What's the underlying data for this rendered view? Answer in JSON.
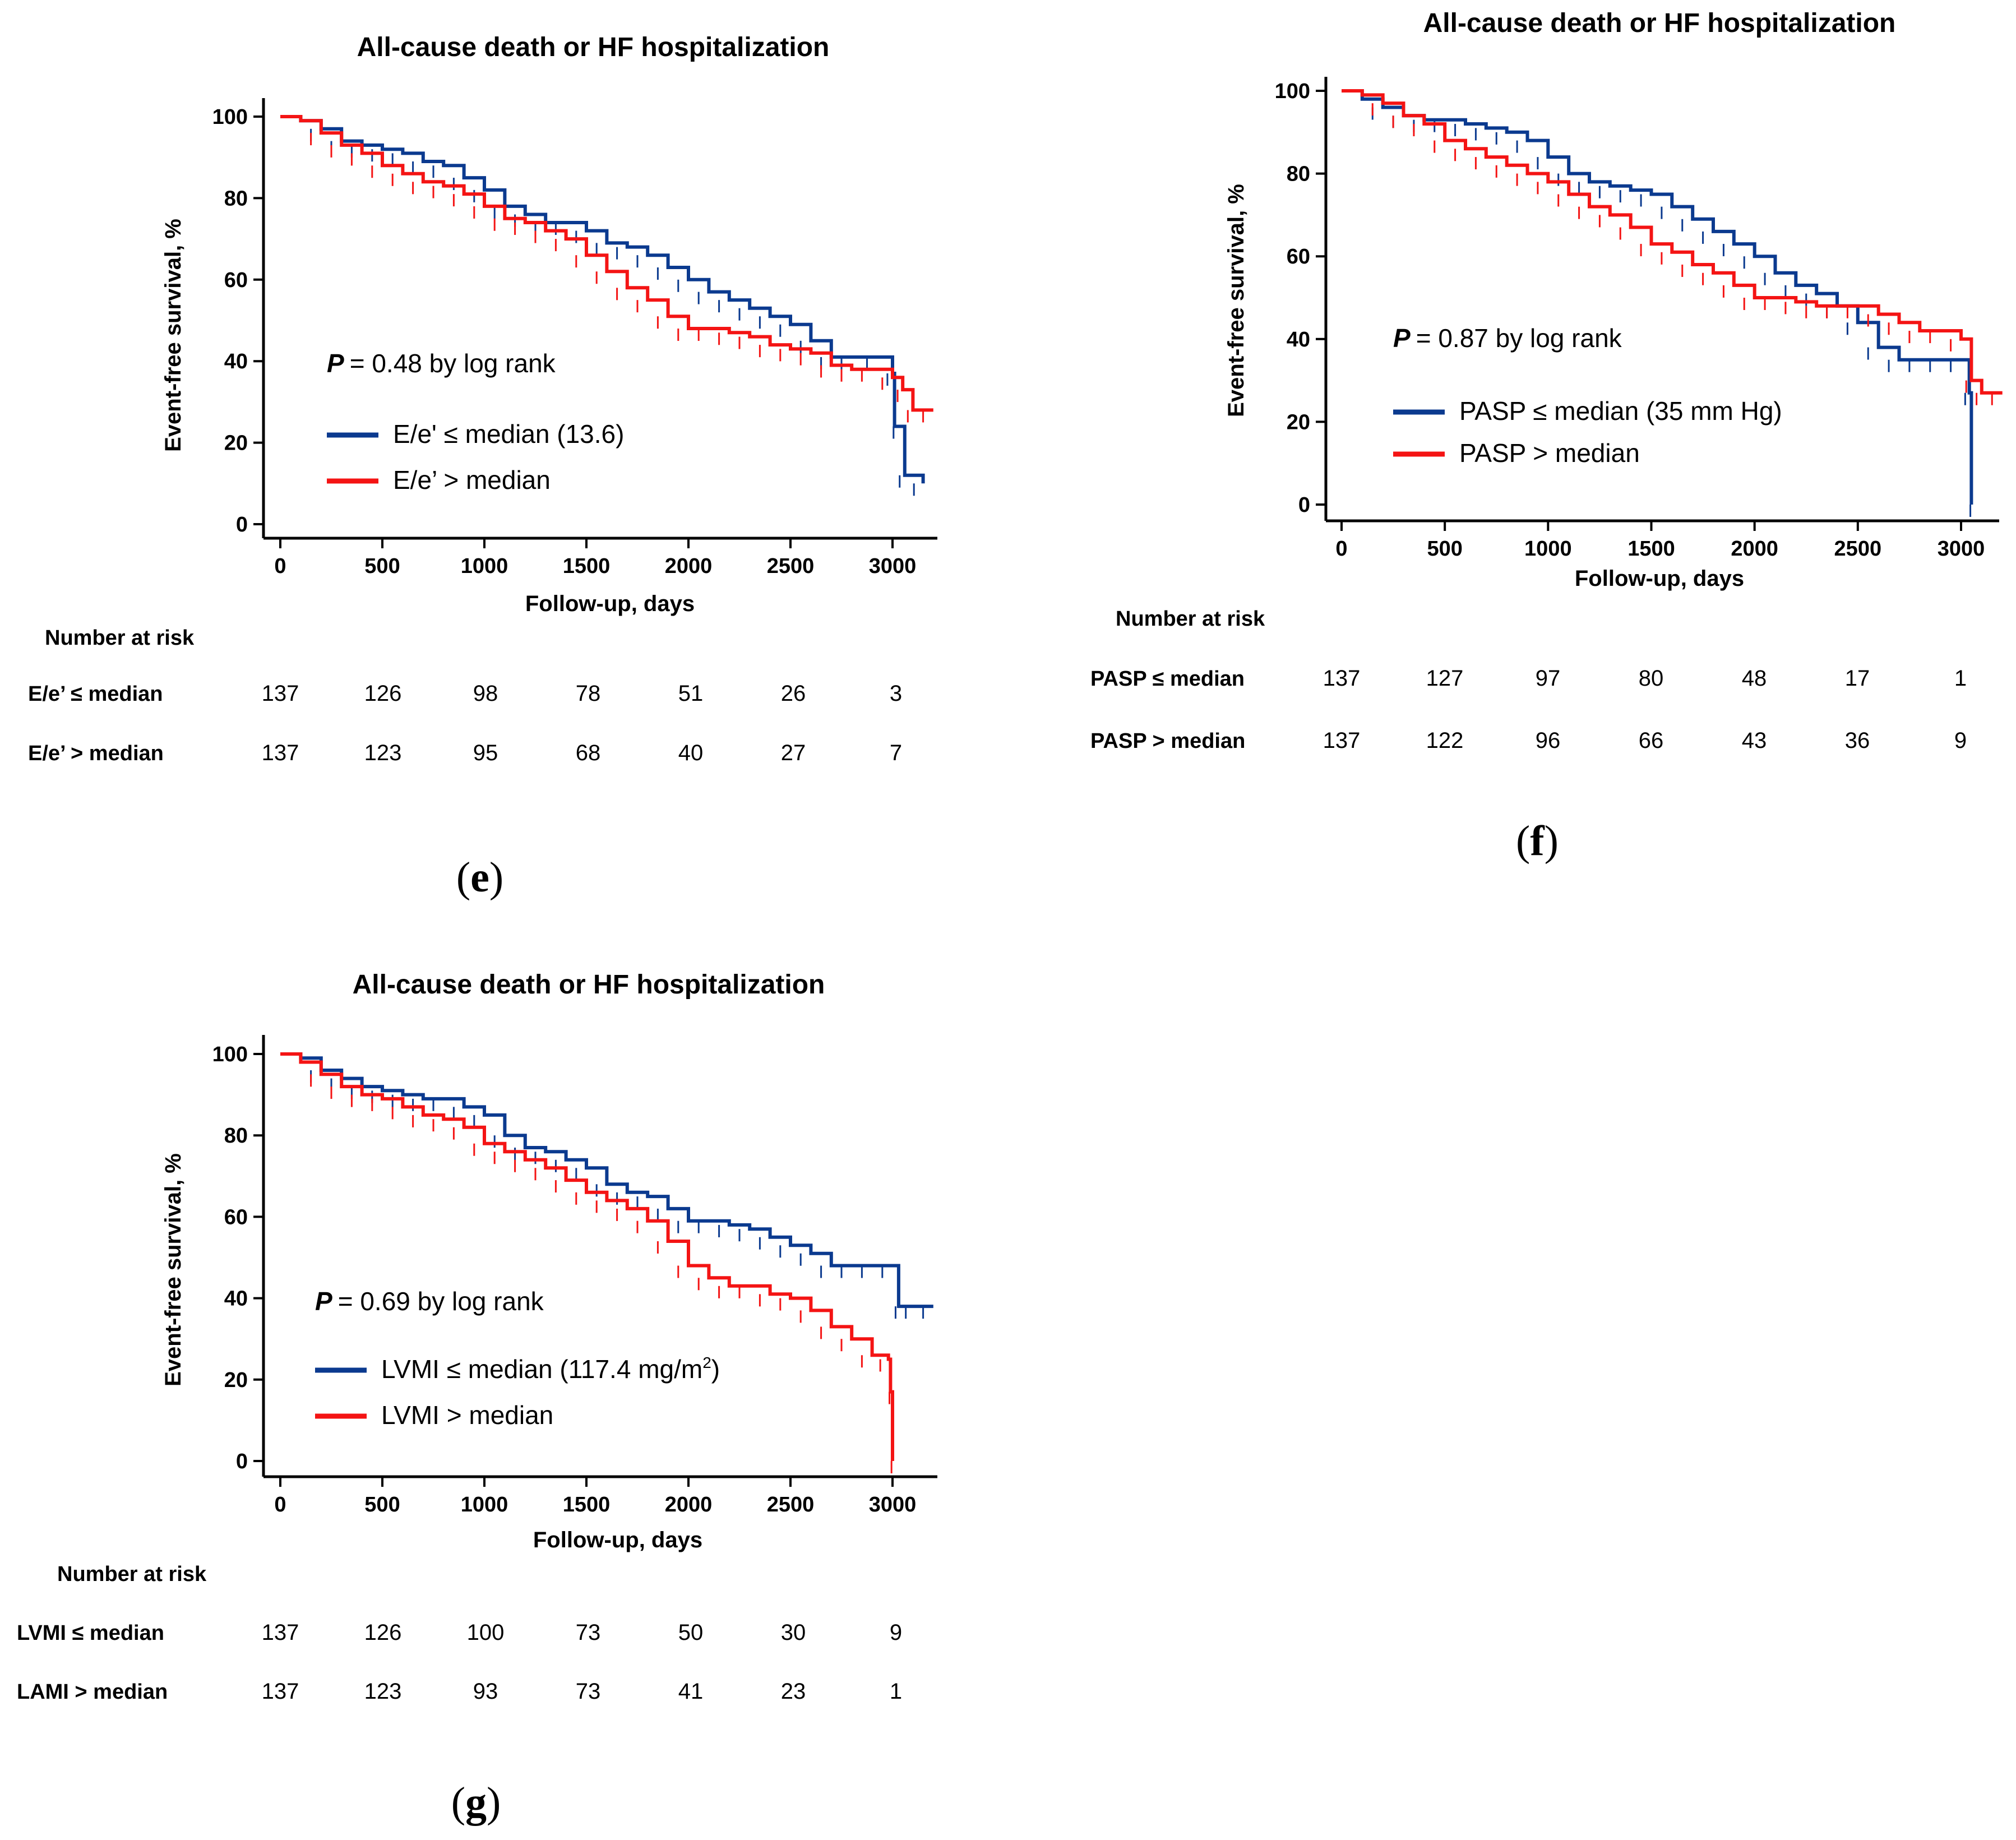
{
  "colors": {
    "group1": "#0b3a8f",
    "group2": "#f41414",
    "axis": "#000000"
  },
  "chart_data": [
    {
      "id": "e",
      "type": "line",
      "panel_label": "e",
      "title": "All-cause death or HF hospitalization",
      "xlabel": "Follow-up, days",
      "ylabel": "Event-free survival, %",
      "xlim": [
        -80,
        3200
      ],
      "ylim": [
        -3,
        104
      ],
      "xticks": [
        0,
        500,
        1000,
        1500,
        2000,
        2500,
        3000
      ],
      "yticks": [
        0,
        20,
        40,
        60,
        80,
        100
      ],
      "grid": false,
      "legend_position": "middle-left",
      "p_label": "P",
      "p_text": "= 0.48 by log rank",
      "series": [
        {
          "name": "E/e' ≤ median (13.6)",
          "color": "#0b3a8f",
          "points": [
            [
              0,
              100
            ],
            [
              100,
              99
            ],
            [
              200,
              97
            ],
            [
              300,
              94
            ],
            [
              400,
              93
            ],
            [
              500,
              92
            ],
            [
              600,
              91
            ],
            [
              700,
              89
            ],
            [
              800,
              88
            ],
            [
              900,
              85
            ],
            [
              1000,
              82
            ],
            [
              1100,
              78
            ],
            [
              1200,
              76
            ],
            [
              1300,
              74
            ],
            [
              1400,
              74
            ],
            [
              1500,
              72
            ],
            [
              1600,
              69
            ],
            [
              1700,
              68
            ],
            [
              1800,
              66
            ],
            [
              1900,
              63
            ],
            [
              2000,
              60
            ],
            [
              2100,
              57
            ],
            [
              2200,
              55
            ],
            [
              2300,
              53
            ],
            [
              2400,
              51
            ],
            [
              2500,
              49
            ],
            [
              2600,
              45
            ],
            [
              2700,
              41
            ],
            [
              2800,
              41
            ],
            [
              2950,
              41
            ],
            [
              3000,
              37
            ],
            [
              3010,
              24
            ],
            [
              3060,
              12
            ],
            [
              3150,
              10
            ]
          ]
        },
        {
          "name": "E/e’ > median",
          "color": "#f41414",
          "points": [
            [
              0,
              100
            ],
            [
              100,
              99
            ],
            [
              200,
              96
            ],
            [
              300,
              93
            ],
            [
              400,
              91
            ],
            [
              500,
              88
            ],
            [
              600,
              86
            ],
            [
              700,
              84
            ],
            [
              800,
              83
            ],
            [
              900,
              81
            ],
            [
              1000,
              78
            ],
            [
              1100,
              75
            ],
            [
              1200,
              74
            ],
            [
              1300,
              72
            ],
            [
              1400,
              70
            ],
            [
              1500,
              66
            ],
            [
              1600,
              62
            ],
            [
              1700,
              58
            ],
            [
              1800,
              55
            ],
            [
              1900,
              51
            ],
            [
              2000,
              48
            ],
            [
              2100,
              48
            ],
            [
              2200,
              47
            ],
            [
              2300,
              46
            ],
            [
              2400,
              44
            ],
            [
              2500,
              43
            ],
            [
              2600,
              42
            ],
            [
              2700,
              39
            ],
            [
              2800,
              38
            ],
            [
              2900,
              38
            ],
            [
              3000,
              36
            ],
            [
              3050,
              33
            ],
            [
              3100,
              28
            ],
            [
              3200,
              28
            ]
          ]
        }
      ],
      "risk_table": {
        "title": "Number at risk",
        "rows": [
          {
            "label": "E/e’ ≤ median",
            "values": [
              "137",
              "126",
              "98",
              "78",
              "51",
              "26",
              "3"
            ]
          },
          {
            "label": "E/e’ > median",
            "values": [
              "137",
              "123",
              "95",
              "68",
              "40",
              "27",
              "7"
            ]
          }
        ]
      }
    },
    {
      "id": "f",
      "type": "line",
      "panel_label": "f",
      "title": "All-cause death or HF hospitalization",
      "xlabel": "Follow-up, days",
      "ylabel": "Event-free survival, %",
      "xlim": [
        -80,
        3200
      ],
      "ylim": [
        -3,
        104
      ],
      "xticks": [
        0,
        500,
        1000,
        1500,
        2000,
        2500,
        3000
      ],
      "yticks": [
        0,
        20,
        40,
        60,
        80,
        100
      ],
      "grid": false,
      "legend_position": "middle-left",
      "p_label": "P",
      "p_text": "= 0.87 by log rank",
      "series": [
        {
          "name": "PASP ≤ median (35 mm Hg)",
          "color": "#0b3a8f",
          "points": [
            [
              0,
              100
            ],
            [
              100,
              98
            ],
            [
              200,
              96
            ],
            [
              300,
              94
            ],
            [
              400,
              93
            ],
            [
              500,
              93
            ],
            [
              600,
              92
            ],
            [
              700,
              91
            ],
            [
              800,
              90
            ],
            [
              900,
              88
            ],
            [
              1000,
              84
            ],
            [
              1100,
              80
            ],
            [
              1200,
              78
            ],
            [
              1300,
              77
            ],
            [
              1400,
              76
            ],
            [
              1500,
              75
            ],
            [
              1600,
              72
            ],
            [
              1700,
              69
            ],
            [
              1800,
              66
            ],
            [
              1900,
              63
            ],
            [
              2000,
              60
            ],
            [
              2100,
              56
            ],
            [
              2200,
              53
            ],
            [
              2300,
              51
            ],
            [
              2400,
              48
            ],
            [
              2500,
              44
            ],
            [
              2600,
              38
            ],
            [
              2700,
              35
            ],
            [
              2800,
              35
            ],
            [
              2900,
              35
            ],
            [
              3000,
              35
            ],
            [
              3040,
              27
            ],
            [
              3050,
              0
            ]
          ]
        },
        {
          "name": "PASP  > median",
          "color": "#f41414",
          "points": [
            [
              0,
              100
            ],
            [
              100,
              99
            ],
            [
              200,
              97
            ],
            [
              300,
              94
            ],
            [
              400,
              92
            ],
            [
              500,
              88
            ],
            [
              600,
              86
            ],
            [
              700,
              84
            ],
            [
              800,
              82
            ],
            [
              900,
              80
            ],
            [
              1000,
              78
            ],
            [
              1100,
              75
            ],
            [
              1200,
              72
            ],
            [
              1300,
              70
            ],
            [
              1400,
              67
            ],
            [
              1500,
              63
            ],
            [
              1600,
              61
            ],
            [
              1700,
              58
            ],
            [
              1800,
              56
            ],
            [
              1900,
              53
            ],
            [
              2000,
              50
            ],
            [
              2100,
              50
            ],
            [
              2200,
              49
            ],
            [
              2300,
              48
            ],
            [
              2400,
              48
            ],
            [
              2500,
              48
            ],
            [
              2600,
              46
            ],
            [
              2700,
              44
            ],
            [
              2800,
              42
            ],
            [
              2900,
              42
            ],
            [
              3000,
              40
            ],
            [
              3050,
              30
            ],
            [
              3100,
              27
            ],
            [
              3200,
              27
            ]
          ]
        }
      ],
      "risk_table": {
        "title": "Number at risk",
        "rows": [
          {
            "label": "PASP ≤ median",
            "values": [
              "137",
              "127",
              "97",
              "80",
              "48",
              "17",
              "1"
            ]
          },
          {
            "label": "PASP > median",
            "values": [
              "137",
              "122",
              "96",
              "66",
              "43",
              "36",
              "9"
            ]
          }
        ]
      }
    },
    {
      "id": "g",
      "type": "line",
      "panel_label": "g",
      "title": "All-cause death or HF hospitalization",
      "xlabel": "Follow-up, days",
      "ylabel": "Event-free survival, %",
      "xlim": [
        -80,
        3200
      ],
      "ylim": [
        -3,
        104
      ],
      "xticks": [
        0,
        500,
        1000,
        1500,
        2000,
        2500,
        3000
      ],
      "yticks": [
        0,
        20,
        40,
        60,
        80,
        100
      ],
      "grid": false,
      "legend_position": "middle-left",
      "p_label": "P",
      "p_text": "= 0.69 by log rank",
      "series": [
        {
          "name": "LVMI ≤ median (117.4 mg/m",
          "name_superscript": "2",
          "name_suffix": ")",
          "color": "#0b3a8f",
          "points": [
            [
              0,
              100
            ],
            [
              100,
              99
            ],
            [
              200,
              96
            ],
            [
              300,
              94
            ],
            [
              400,
              92
            ],
            [
              500,
              91
            ],
            [
              600,
              90
            ],
            [
              700,
              89
            ],
            [
              800,
              89
            ],
            [
              900,
              87
            ],
            [
              1000,
              85
            ],
            [
              1100,
              80
            ],
            [
              1200,
              77
            ],
            [
              1300,
              76
            ],
            [
              1400,
              74
            ],
            [
              1500,
              72
            ],
            [
              1600,
              68
            ],
            [
              1700,
              66
            ],
            [
              1800,
              65
            ],
            [
              1900,
              62
            ],
            [
              2000,
              59
            ],
            [
              2100,
              59
            ],
            [
              2200,
              58
            ],
            [
              2300,
              57
            ],
            [
              2400,
              55
            ],
            [
              2500,
              53
            ],
            [
              2600,
              51
            ],
            [
              2700,
              48
            ],
            [
              2800,
              48
            ],
            [
              2900,
              48
            ],
            [
              3000,
              48
            ],
            [
              3030,
              38
            ],
            [
              3100,
              38
            ],
            [
              3200,
              38
            ]
          ]
        },
        {
          "name": "LVMI > median",
          "color": "#f41414",
          "points": [
            [
              0,
              100
            ],
            [
              100,
              98
            ],
            [
              200,
              95
            ],
            [
              300,
              92
            ],
            [
              400,
              90
            ],
            [
              500,
              89
            ],
            [
              600,
              87
            ],
            [
              700,
              85
            ],
            [
              800,
              84
            ],
            [
              900,
              82
            ],
            [
              1000,
              78
            ],
            [
              1100,
              76
            ],
            [
              1200,
              74
            ],
            [
              1300,
              72
            ],
            [
              1400,
              69
            ],
            [
              1500,
              66
            ],
            [
              1600,
              64
            ],
            [
              1700,
              62
            ],
            [
              1800,
              59
            ],
            [
              1900,
              54
            ],
            [
              2000,
              48
            ],
            [
              2100,
              45
            ],
            [
              2200,
              43
            ],
            [
              2300,
              43
            ],
            [
              2400,
              41
            ],
            [
              2500,
              40
            ],
            [
              2600,
              37
            ],
            [
              2700,
              33
            ],
            [
              2800,
              30
            ],
            [
              2900,
              26
            ],
            [
              2980,
              25
            ],
            [
              2990,
              17
            ],
            [
              3000,
              0
            ]
          ]
        }
      ],
      "risk_table": {
        "title": "Number at risk",
        "rows": [
          {
            "label": "LVMI ≤ median",
            "values": [
              "137",
              "126",
              "100",
              "73",
              "50",
              "30",
              "9"
            ]
          },
          {
            "label": "LAMI > median",
            "values": [
              "137",
              "123",
              "93",
              "73",
              "41",
              "23",
              "1"
            ]
          }
        ]
      }
    }
  ]
}
